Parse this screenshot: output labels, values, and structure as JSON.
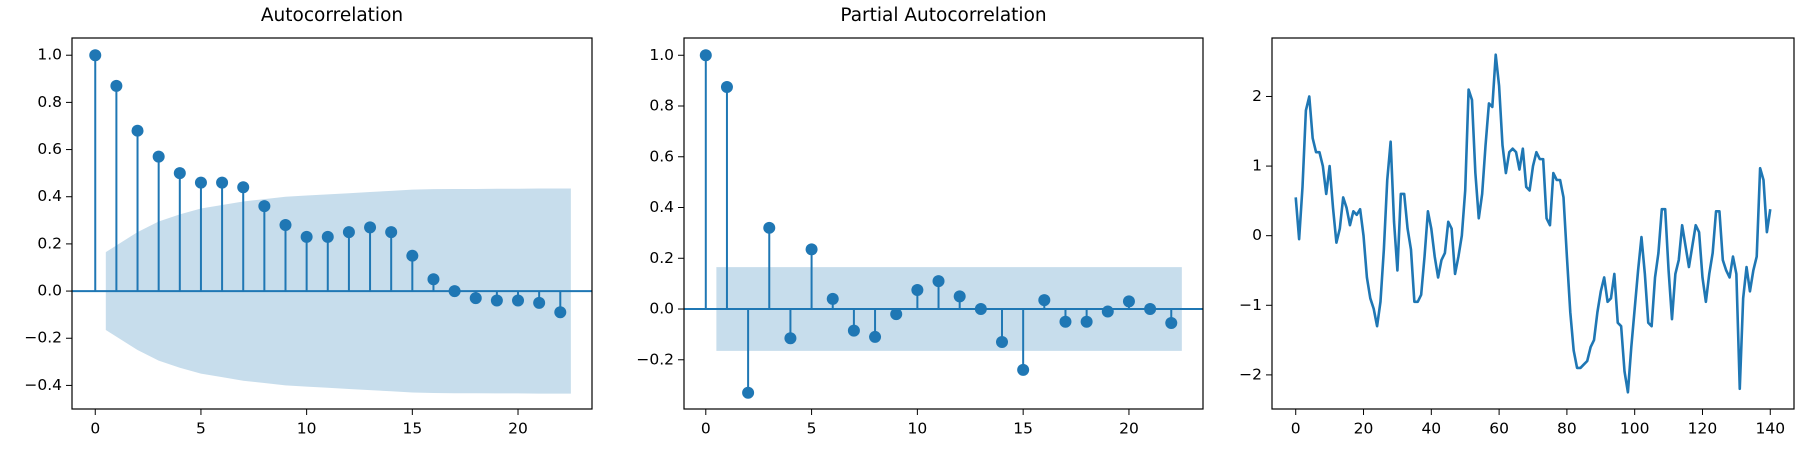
{
  "chart_data": [
    {
      "type": "stem",
      "title": "Autocorrelation",
      "color": "#1f77b4",
      "band_color": "#1f77b4",
      "x": [
        0,
        1,
        2,
        3,
        4,
        5,
        6,
        7,
        8,
        9,
        10,
        11,
        12,
        13,
        14,
        15,
        16,
        17,
        18,
        19,
        20,
        21,
        22
      ],
      "values": [
        1.0,
        0.87,
        0.68,
        0.57,
        0.5,
        0.46,
        0.46,
        0.44,
        0.36,
        0.28,
        0.23,
        0.23,
        0.25,
        0.27,
        0.25,
        0.15,
        0.05,
        0.0,
        -0.03,
        -0.04,
        -0.04,
        -0.05,
        -0.09
      ],
      "band_upper": [
        0.165,
        0.25,
        0.295,
        0.325,
        0.35,
        0.365,
        0.38,
        0.39,
        0.4,
        0.405,
        0.41,
        0.415,
        0.42,
        0.425,
        0.43,
        0.432,
        0.433,
        0.433,
        0.434,
        0.434,
        0.435,
        0.435
      ],
      "band_lower": [
        -0.165,
        -0.25,
        -0.295,
        -0.325,
        -0.35,
        -0.365,
        -0.38,
        -0.39,
        -0.4,
        -0.405,
        -0.41,
        -0.415,
        -0.42,
        -0.425,
        -0.43,
        -0.432,
        -0.433,
        -0.433,
        -0.434,
        -0.434,
        -0.435,
        -0.435
      ],
      "xlim": [
        -1.1,
        23.5
      ],
      "xticks": [
        0,
        5,
        10,
        15,
        20
      ],
      "ylim": [
        -0.5,
        1.073
      ],
      "yticks": [
        {
          "value": -0.4,
          "label": "−0.4"
        },
        {
          "value": -0.2,
          "label": "−0.2"
        },
        {
          "value": 0,
          "label": "0.0"
        },
        0.2,
        0.4,
        0.6,
        0.8,
        {
          "value": 1,
          "label": "1.0"
        }
      ]
    },
    {
      "type": "stem",
      "title": "Partial Autocorrelation",
      "color": "#1f77b4",
      "band_color": "#1f77b4",
      "x": [
        0,
        1,
        2,
        3,
        4,
        5,
        6,
        7,
        8,
        9,
        10,
        11,
        12,
        13,
        14,
        15,
        16,
        17,
        18,
        19,
        20,
        21,
        22
      ],
      "values": [
        1.0,
        0.875,
        -0.33,
        0.32,
        -0.115,
        0.235,
        0.04,
        -0.085,
        -0.11,
        -0.02,
        0.075,
        0.11,
        0.05,
        0.0,
        -0.13,
        -0.24,
        0.035,
        -0.05,
        -0.05,
        -0.01,
        0.03,
        0.0,
        -0.055
      ],
      "band_upper": [
        0.165,
        0.165,
        0.165,
        0.165,
        0.165,
        0.165,
        0.165,
        0.165,
        0.165,
        0.165,
        0.165,
        0.165,
        0.165,
        0.165,
        0.165,
        0.165,
        0.165,
        0.165,
        0.165,
        0.165,
        0.165,
        0.165
      ],
      "band_lower": [
        -0.165,
        -0.165,
        -0.165,
        -0.165,
        -0.165,
        -0.165,
        -0.165,
        -0.165,
        -0.165,
        -0.165,
        -0.165,
        -0.165,
        -0.165,
        -0.165,
        -0.165,
        -0.165,
        -0.165,
        -0.165,
        -0.165,
        -0.165,
        -0.165,
        -0.165
      ],
      "xlim": [
        -1.03,
        23.5
      ],
      "xticks": [
        0,
        5,
        10,
        15,
        20
      ],
      "ylim": [
        -0.394,
        1.068
      ],
      "yticks": [
        {
          "value": -0.2,
          "label": "−0.2"
        },
        {
          "value": 0,
          "label": "0.0"
        },
        0.2,
        0.4,
        0.6,
        0.8,
        {
          "value": 1,
          "label": "1.0"
        }
      ]
    },
    {
      "type": "line",
      "color": "#1f77b4",
      "x": [
        0,
        1,
        2,
        3,
        4,
        5,
        6,
        7,
        8,
        9,
        10,
        11,
        12,
        13,
        14,
        15,
        16,
        17,
        18,
        19,
        20,
        21,
        22,
        23,
        24,
        25,
        26,
        27,
        28,
        29,
        30,
        31,
        32,
        33,
        34,
        35,
        36,
        37,
        38,
        39,
        40,
        41,
        42,
        43,
        44,
        45,
        46,
        47,
        48,
        49,
        50,
        51,
        52,
        53,
        54,
        55,
        56,
        57,
        58,
        59,
        60,
        61,
        62,
        63,
        64,
        65,
        66,
        67,
        68,
        69,
        70,
        71,
        72,
        73,
        74,
        75,
        76,
        77,
        78,
        79,
        80,
        81,
        82,
        83,
        84,
        85,
        86,
        87,
        88,
        89,
        90,
        91,
        92,
        93,
        94,
        95,
        96,
        97,
        98,
        99,
        100,
        101,
        102,
        103,
        104,
        105,
        106,
        107,
        108,
        109,
        110,
        111,
        112,
        113,
        114,
        115,
        116,
        117,
        118,
        119,
        120,
        121,
        122,
        123,
        124,
        125,
        126,
        127,
        128,
        129,
        130,
        131,
        132,
        133,
        134,
        135,
        136,
        137,
        138,
        139,
        140
      ],
      "values": [
        0.55,
        -0.05,
        0.7,
        1.8,
        2.0,
        1.4,
        1.2,
        1.2,
        1.0,
        0.6,
        1.0,
        0.4,
        -0.1,
        0.1,
        0.55,
        0.4,
        0.15,
        0.35,
        0.3,
        0.38,
        0.0,
        -0.6,
        -0.9,
        -1.05,
        -1.3,
        -0.95,
        -0.2,
        0.8,
        1.35,
        0.2,
        -0.5,
        0.6,
        0.6,
        0.1,
        -0.2,
        -0.95,
        -0.95,
        -0.85,
        -0.3,
        0.35,
        0.1,
        -0.3,
        -0.6,
        -0.35,
        -0.25,
        0.2,
        0.1,
        -0.55,
        -0.3,
        0.0,
        0.65,
        2.1,
        1.95,
        0.9,
        0.25,
        0.6,
        1.3,
        1.9,
        1.85,
        2.6,
        2.15,
        1.3,
        0.9,
        1.2,
        1.25,
        1.2,
        0.95,
        1.25,
        0.7,
        0.65,
        1.0,
        1.2,
        1.1,
        1.1,
        0.25,
        0.15,
        0.9,
        0.8,
        0.8,
        0.55,
        -0.3,
        -1.1,
        -1.65,
        -1.9,
        -1.9,
        -1.85,
        -1.8,
        -1.6,
        -1.5,
        -1.1,
        -0.8,
        -0.6,
        -0.95,
        -0.9,
        -0.55,
        -1.25,
        -1.3,
        -1.95,
        -2.25,
        -1.6,
        -1.05,
        -0.5,
        -0.02,
        -0.55,
        -1.25,
        -1.3,
        -0.6,
        -0.25,
        0.38,
        0.38,
        -0.5,
        -1.2,
        -0.55,
        -0.35,
        0.15,
        -0.15,
        -0.45,
        -0.15,
        0.15,
        0.05,
        -0.6,
        -0.95,
        -0.55,
        -0.25,
        0.35,
        0.35,
        -0.35,
        -0.5,
        -0.6,
        -0.3,
        -0.55,
        -2.2,
        -0.9,
        -0.45,
        -0.8,
        -0.5,
        -0.3,
        0.97,
        0.8,
        0.05,
        0.38
      ],
      "xlim": [
        -7,
        147
      ],
      "xticks": [
        0,
        20,
        40,
        60,
        80,
        100,
        120,
        140
      ],
      "ylim": [
        -2.49,
        2.84
      ],
      "yticks": [
        {
          "value": -2,
          "label": "−2"
        },
        {
          "value": -1,
          "label": "−1"
        },
        0,
        1,
        2
      ]
    }
  ]
}
